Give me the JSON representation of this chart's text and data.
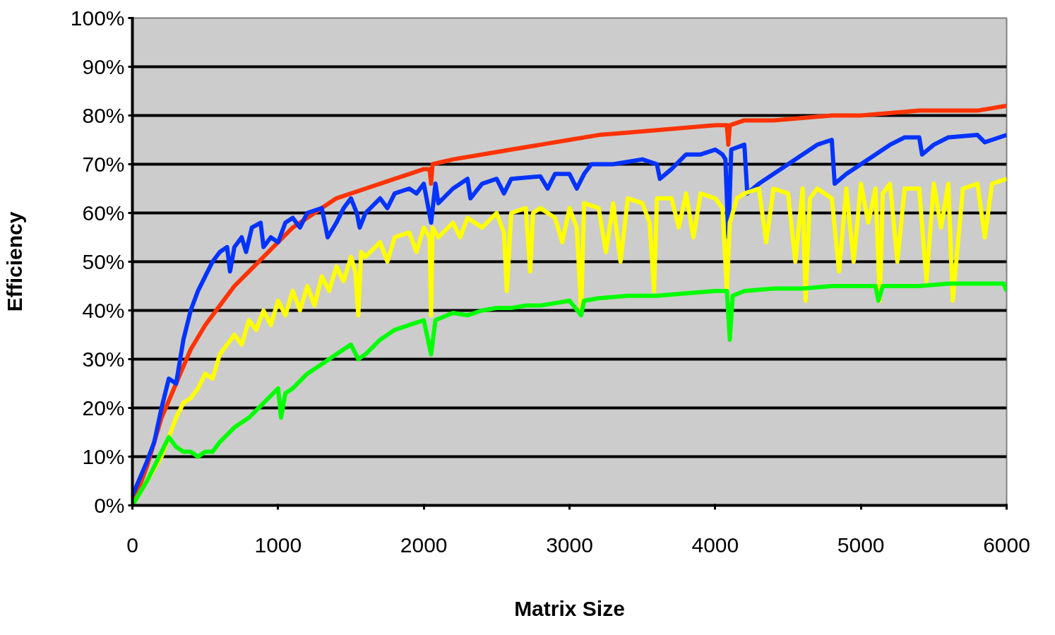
{
  "chart_data": {
    "type": "line",
    "xlabel": "Matrix Size",
    "ylabel": "Efficiency",
    "xlim": [
      0,
      6000
    ],
    "xticks": [
      0,
      1000,
      2000,
      3000,
      4000,
      5000,
      6000
    ],
    "ylim": [
      0,
      100
    ],
    "yticks": [
      {
        "value": 0,
        "label": "0%"
      },
      {
        "value": 10,
        "label": "10%"
      },
      {
        "value": 20,
        "label": "20%"
      },
      {
        "value": 30,
        "label": "30%"
      },
      {
        "value": 40,
        "label": "40%"
      },
      {
        "value": 50,
        "label": "50%"
      },
      {
        "value": 60,
        "label": "60%"
      },
      {
        "value": 70,
        "label": "70%"
      },
      {
        "value": 80,
        "label": "80%"
      },
      {
        "value": 90,
        "label": "90%"
      },
      {
        "value": 100,
        "label": "100%"
      }
    ],
    "grid": "y",
    "marker": "none",
    "line_style": "solid",
    "series": [
      {
        "color": "#ff3300",
        "x": [
          0,
          100,
          200,
          300,
          400,
          500,
          600,
          700,
          800,
          900,
          1000,
          1100,
          1200,
          1300,
          1400,
          1500,
          1600,
          1700,
          1800,
          1900,
          2000,
          2040,
          2050,
          2060,
          2200,
          2400,
          2600,
          2800,
          3000,
          3200,
          3400,
          3600,
          3800,
          4000,
          4080,
          4090,
          4100,
          4200,
          4400,
          4600,
          4800,
          5000,
          5200,
          5400,
          5600,
          5800,
          6000
        ],
        "values": [
          0,
          8,
          18,
          25,
          32,
          37,
          41,
          45,
          48,
          51,
          54,
          57,
          59,
          61,
          63,
          64,
          65,
          66,
          67,
          68,
          69,
          69,
          66,
          70,
          71,
          72,
          73,
          74,
          75,
          76,
          76.5,
          77,
          77.5,
          78,
          78,
          74,
          78,
          79,
          79,
          79.5,
          80,
          80,
          80.5,
          81,
          81,
          81,
          82
        ]
      },
      {
        "color": "#0033ff",
        "x": [
          0,
          100,
          150,
          200,
          250,
          300,
          350,
          400,
          450,
          500,
          550,
          600,
          650,
          670,
          700,
          750,
          780,
          820,
          880,
          900,
          950,
          1000,
          1050,
          1100,
          1150,
          1200,
          1300,
          1340,
          1400,
          1450,
          1500,
          1540,
          1560,
          1600,
          1700,
          1750,
          1800,
          1900,
          1950,
          2000,
          2050,
          2080,
          2100,
          2200,
          2300,
          2320,
          2400,
          2500,
          2550,
          2600,
          2800,
          2850,
          2900,
          3000,
          3050,
          3100,
          3150,
          3300,
          3500,
          3600,
          3620,
          3700,
          3800,
          3900,
          4000,
          4050,
          4070,
          4090,
          4110,
          4200,
          4220,
          4300,
          4400,
          4500,
          4600,
          4700,
          4800,
          4820,
          4900,
          5000,
          5100,
          5200,
          5300,
          5400,
          5420,
          5500,
          5600,
          5800,
          5850,
          5900,
          6000
        ],
        "values": [
          2,
          9,
          13,
          20,
          26,
          25,
          34,
          40,
          44,
          47,
          50,
          52,
          53,
          48,
          53,
          55,
          52,
          57,
          58,
          53,
          55,
          54,
          58,
          59,
          57,
          60,
          61,
          55,
          58,
          61,
          63,
          60,
          57,
          60,
          63,
          61,
          64,
          65,
          64,
          66,
          58,
          66,
          62,
          65,
          67,
          63,
          66,
          67,
          64,
          67,
          67.5,
          65,
          68,
          68,
          65,
          68,
          70,
          70,
          71,
          70,
          67,
          69,
          72,
          72,
          73,
          72,
          71,
          55,
          73,
          74,
          64,
          66,
          68,
          70,
          72,
          74,
          75,
          66,
          68,
          70,
          72,
          74,
          75.5,
          75.5,
          72,
          74,
          75.5,
          76,
          74.5,
          75,
          76
        ]
      },
      {
        "color": "#ffff00",
        "x": [
          0,
          100,
          200,
          250,
          300,
          350,
          400,
          450,
          500,
          550,
          600,
          650,
          700,
          750,
          800,
          850,
          900,
          950,
          1000,
          1050,
          1100,
          1150,
          1200,
          1250,
          1300,
          1350,
          1400,
          1450,
          1500,
          1530,
          1550,
          1570,
          1600,
          1700,
          1750,
          1800,
          1900,
          1950,
          2000,
          2040,
          2050,
          2060,
          2100,
          2200,
          2250,
          2300,
          2400,
          2500,
          2550,
          2570,
          2600,
          2700,
          2730,
          2750,
          2800,
          2900,
          2950,
          3000,
          3050,
          3080,
          3100,
          3200,
          3250,
          3300,
          3350,
          3400,
          3500,
          3550,
          3580,
          3600,
          3700,
          3750,
          3800,
          3850,
          3900,
          4000,
          4050,
          4080,
          4100,
          4150,
          4200,
          4300,
          4350,
          4400,
          4500,
          4550,
          4600,
          4620,
          4650,
          4700,
          4800,
          4850,
          4900,
          4950,
          5000,
          5050,
          5100,
          5130,
          5150,
          5200,
          5250,
          5300,
          5400,
          5450,
          5500,
          5550,
          5600,
          5630,
          5700,
          5800,
          5850,
          5900,
          6000
        ],
        "values": [
          0,
          5,
          10,
          14,
          18,
          21,
          22,
          24,
          27,
          26,
          31,
          33,
          35,
          33,
          38,
          36,
          40,
          37,
          42,
          39,
          44,
          40,
          45,
          41,
          47,
          44,
          49,
          46,
          51,
          48,
          39,
          52,
          51,
          54,
          50,
          55,
          56,
          52,
          57,
          55,
          39,
          57,
          55,
          58,
          55,
          59,
          57,
          60,
          56,
          44,
          60,
          61,
          48,
          60,
          61,
          59,
          54,
          61,
          57,
          40,
          62,
          61,
          52,
          62,
          50,
          63,
          62,
          58,
          44,
          63,
          63,
          57,
          64,
          55,
          64,
          63,
          61,
          44,
          58,
          63,
          64,
          65,
          54,
          65,
          64,
          50,
          65,
          42,
          63,
          65,
          63,
          48,
          65,
          50,
          66,
          58,
          65,
          42,
          64,
          66,
          50,
          65,
          65,
          46,
          66,
          57,
          66,
          42,
          65,
          66,
          55,
          66,
          67
        ]
      },
      {
        "color": "#00ff00",
        "x": [
          0,
          100,
          200,
          250,
          300,
          350,
          400,
          450,
          500,
          550,
          600,
          700,
          800,
          900,
          1000,
          1020,
          1050,
          1100,
          1200,
          1300,
          1400,
          1500,
          1550,
          1600,
          1700,
          1800,
          1900,
          2000,
          2050,
          2080,
          2200,
          2300,
          2400,
          2500,
          2600,
          2700,
          2800,
          3000,
          3080,
          3100,
          3200,
          3400,
          3600,
          3800,
          4000,
          4080,
          4100,
          4120,
          4200,
          4400,
          4600,
          4800,
          5000,
          5100,
          5120,
          5150,
          5400,
          5600,
          5800,
          5980,
          6000
        ],
        "values": [
          0,
          5,
          11,
          14,
          12,
          11,
          11,
          10,
          11,
          11,
          13,
          16,
          18,
          21,
          24,
          18,
          23,
          24,
          27,
          29,
          31,
          33,
          30,
          31,
          34,
          36,
          37,
          38,
          31,
          38,
          39.5,
          39,
          40,
          40.5,
          40.5,
          41,
          41,
          42,
          39,
          42,
          42.5,
          43,
          43,
          43.5,
          44,
          44,
          34,
          43,
          44,
          44.5,
          44.5,
          45,
          45,
          45,
          42,
          45,
          45,
          45.5,
          45.5,
          45.5,
          44
        ]
      }
    ]
  }
}
